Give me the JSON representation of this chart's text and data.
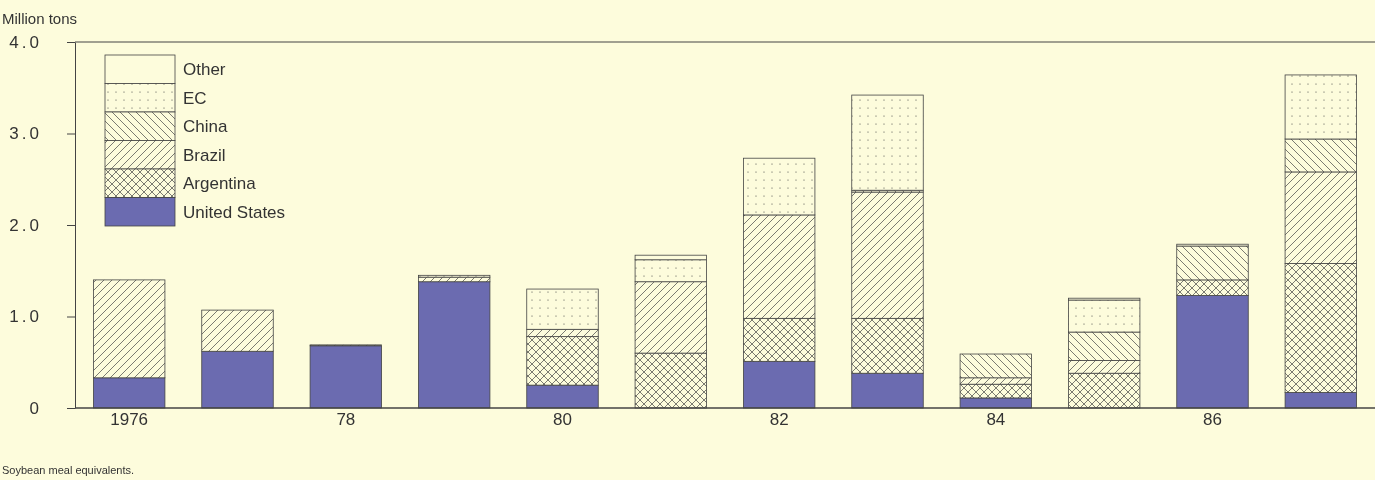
{
  "chart_data": {
    "type": "bar",
    "stacked": true,
    "ylabel": "Million tons",
    "categories": [
      "1976",
      null,
      "78",
      null,
      "80",
      null,
      "82",
      null,
      "84",
      null,
      "86",
      null
    ],
    "series": [
      {
        "name": "United States",
        "color": "#6b6bb0",
        "values": [
          0.33,
          0.62,
          0.68,
          1.38,
          0.25,
          null,
          0.51,
          0.38,
          0.11,
          null,
          1.23,
          0.17
        ]
      },
      {
        "name": "Argentina",
        "color": "#444444",
        "values": [
          null,
          null,
          null,
          null,
          0.53,
          0.6,
          0.47,
          0.6,
          0.15,
          0.38,
          0.17,
          1.41
        ]
      },
      {
        "name": "Brazil",
        "color": "#444444",
        "values": [
          1.07,
          0.45,
          0.01,
          0.05,
          0.08,
          0.78,
          1.13,
          1.38,
          0.07,
          0.14,
          null,
          1.0
        ]
      },
      {
        "name": "China",
        "color": "#444444",
        "values": [
          null,
          null,
          null,
          null,
          null,
          null,
          null,
          0.02,
          0.26,
          0.31,
          0.37,
          0.36
        ]
      },
      {
        "name": "EC",
        "color": "#444444",
        "values": [
          null,
          null,
          null,
          0.02,
          0.44,
          0.24,
          0.62,
          1.04,
          null,
          0.35,
          null,
          0.7
        ]
      },
      {
        "name": "Other",
        "color": "#444444",
        "values": [
          null,
          null,
          null,
          null,
          null,
          0.05,
          null,
          null,
          null,
          0.02,
          0.02,
          null
        ]
      }
    ],
    "ylim": [
      0,
      4.0
    ],
    "yticks": [
      {
        "value": 0,
        "label": "0"
      },
      {
        "value": 1,
        "label": "1.0"
      },
      {
        "value": 2,
        "label": "2.0"
      },
      {
        "value": 3,
        "label": "3.0"
      },
      {
        "value": 4,
        "label": "4.0"
      }
    ],
    "legend": "top left",
    "annotations": [
      "Soybean meal equivalents."
    ]
  }
}
